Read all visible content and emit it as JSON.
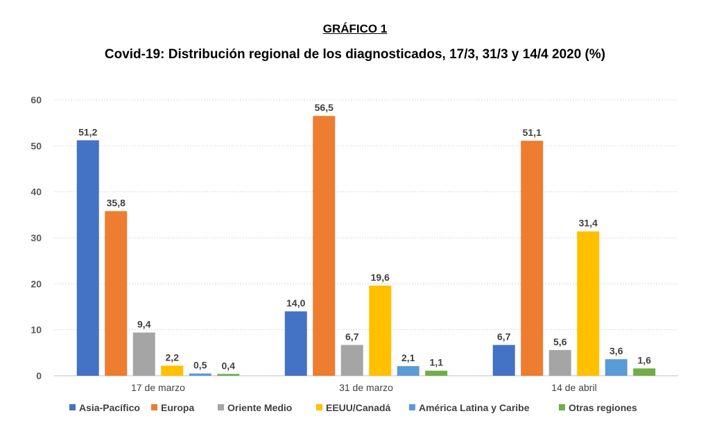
{
  "chart_data": {
    "type": "bar",
    "title": "GRÁFICO 1",
    "subtitle": "Covid-19: Distribución regional de los diagnosticados, 17/3, 31/3 y 14/4 2020 (%)",
    "xlabel": "",
    "ylabel": "",
    "ylim": [
      0,
      60
    ],
    "yticks": [
      "0",
      "10",
      "20",
      "30",
      "40",
      "50",
      "60"
    ],
    "grid": true,
    "legend_position": "bottom",
    "categories": [
      "17 de marzo",
      "31 de marzo",
      "14 de abril"
    ],
    "series": [
      {
        "name": "Asia-Pacífico",
        "color": "#4472C4",
        "values": [
          51.2,
          14.0,
          6.7
        ],
        "labels": [
          "51,2",
          "14,0",
          "6,7"
        ]
      },
      {
        "name": "Europa",
        "color": "#ED7D31",
        "values": [
          35.8,
          56.5,
          51.1
        ],
        "labels": [
          "35,8",
          "56,5",
          "51,1"
        ]
      },
      {
        "name": "Oriente Medio",
        "color": "#A5A5A5",
        "values": [
          9.4,
          6.7,
          5.6
        ],
        "labels": [
          "9,4",
          "6,7",
          "5,6"
        ]
      },
      {
        "name": "EEUU/Canadá",
        "color": "#FFC000",
        "values": [
          2.2,
          19.6,
          31.4
        ],
        "labels": [
          "2,2",
          "19,6",
          "31,4"
        ]
      },
      {
        "name": "América Latina y Caribe",
        "color": "#5B9BD5",
        "values": [
          0.5,
          2.1,
          3.6
        ],
        "labels": [
          "0,5",
          "2,1",
          "3,6"
        ]
      },
      {
        "name": "Otras regiones",
        "color": "#70AD47",
        "values": [
          0.4,
          1.1,
          1.6
        ],
        "labels": [
          "0,4",
          "1,1",
          "1,6"
        ]
      }
    ]
  }
}
